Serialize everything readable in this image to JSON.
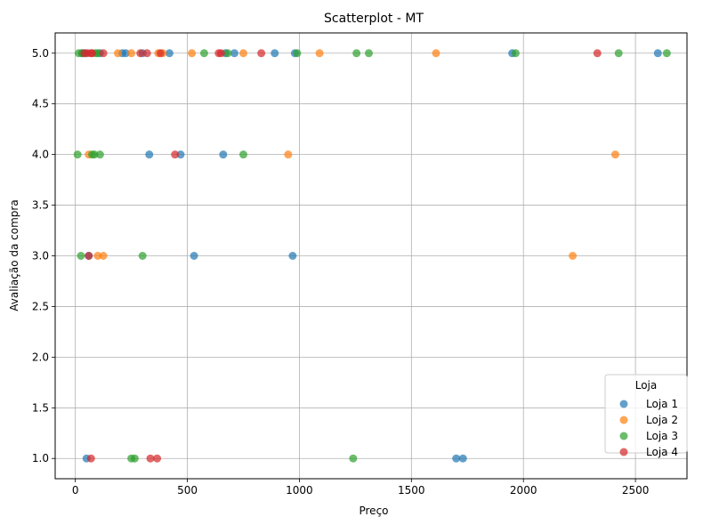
{
  "chart_data": {
    "type": "scatter",
    "title": "Scatterplot - MT",
    "xlabel": "Preço",
    "ylabel": "Avaliação da compra",
    "xlim": [
      -90,
      2730
    ],
    "ylim": [
      0.8,
      5.2
    ],
    "x_ticks": [
      0,
      500,
      1000,
      1500,
      2000,
      2500
    ],
    "y_ticks": [
      1.0,
      1.5,
      2.0,
      2.5,
      3.0,
      3.5,
      4.0,
      4.5,
      5.0
    ],
    "x_tick_labels": [
      "0",
      "500",
      "1000",
      "1500",
      "2000",
      "2500"
    ],
    "y_tick_labels": [
      "1.0",
      "1.5",
      "2.0",
      "2.5",
      "3.0",
      "3.5",
      "4.0",
      "4.5",
      "5.0"
    ],
    "grid": true,
    "legend": {
      "title": "Loja",
      "placement": "bottom-right"
    },
    "series": [
      {
        "name": "Loja 1",
        "color": "#1f77b4",
        "points": [
          [
            30,
            5
          ],
          [
            45,
            5
          ],
          [
            110,
            5
          ],
          [
            210,
            5
          ],
          [
            225,
            5
          ],
          [
            300,
            5
          ],
          [
            420,
            5
          ],
          [
            670,
            5
          ],
          [
            710,
            5
          ],
          [
            890,
            5
          ],
          [
            980,
            5
          ],
          [
            1950,
            5
          ],
          [
            2600,
            5
          ],
          [
            330,
            4
          ],
          [
            470,
            4
          ],
          [
            660,
            4
          ],
          [
            60,
            3
          ],
          [
            530,
            3
          ],
          [
            970,
            3
          ],
          [
            50,
            1
          ],
          [
            1700,
            1
          ],
          [
            1730,
            1
          ]
        ]
      },
      {
        "name": "Loja 2",
        "color": "#ff7f0e",
        "points": [
          [
            190,
            5
          ],
          [
            250,
            5
          ],
          [
            370,
            5
          ],
          [
            390,
            5
          ],
          [
            520,
            5
          ],
          [
            750,
            5
          ],
          [
            1090,
            5
          ],
          [
            1610,
            5
          ],
          [
            60,
            4
          ],
          [
            950,
            4
          ],
          [
            2410,
            4
          ],
          [
            100,
            3
          ],
          [
            125,
            3
          ],
          [
            2220,
            3
          ]
        ]
      },
      {
        "name": "Loja 3",
        "color": "#2ca02c",
        "points": [
          [
            15,
            5
          ],
          [
            30,
            5
          ],
          [
            90,
            5
          ],
          [
            100,
            5
          ],
          [
            575,
            5
          ],
          [
            680,
            5
          ],
          [
            990,
            5
          ],
          [
            1255,
            5
          ],
          [
            1310,
            5
          ],
          [
            1965,
            5
          ],
          [
            2425,
            5
          ],
          [
            2640,
            5
          ],
          [
            10,
            4
          ],
          [
            75,
            4
          ],
          [
            85,
            4
          ],
          [
            110,
            4
          ],
          [
            750,
            4
          ],
          [
            25,
            3
          ],
          [
            300,
            3
          ],
          [
            250,
            1
          ],
          [
            265,
            1
          ],
          [
            1240,
            1
          ]
        ]
      },
      {
        "name": "Loja 4",
        "color": "#d62728",
        "points": [
          [
            40,
            5
          ],
          [
            55,
            5
          ],
          [
            70,
            5
          ],
          [
            75,
            5
          ],
          [
            125,
            5
          ],
          [
            290,
            5
          ],
          [
            320,
            5
          ],
          [
            380,
            5
          ],
          [
            640,
            5
          ],
          [
            650,
            5
          ],
          [
            830,
            5
          ],
          [
            2330,
            5
          ],
          [
            445,
            4
          ],
          [
            60,
            3
          ],
          [
            70,
            1
          ],
          [
            335,
            1
          ],
          [
            365,
            1
          ]
        ]
      }
    ]
  }
}
